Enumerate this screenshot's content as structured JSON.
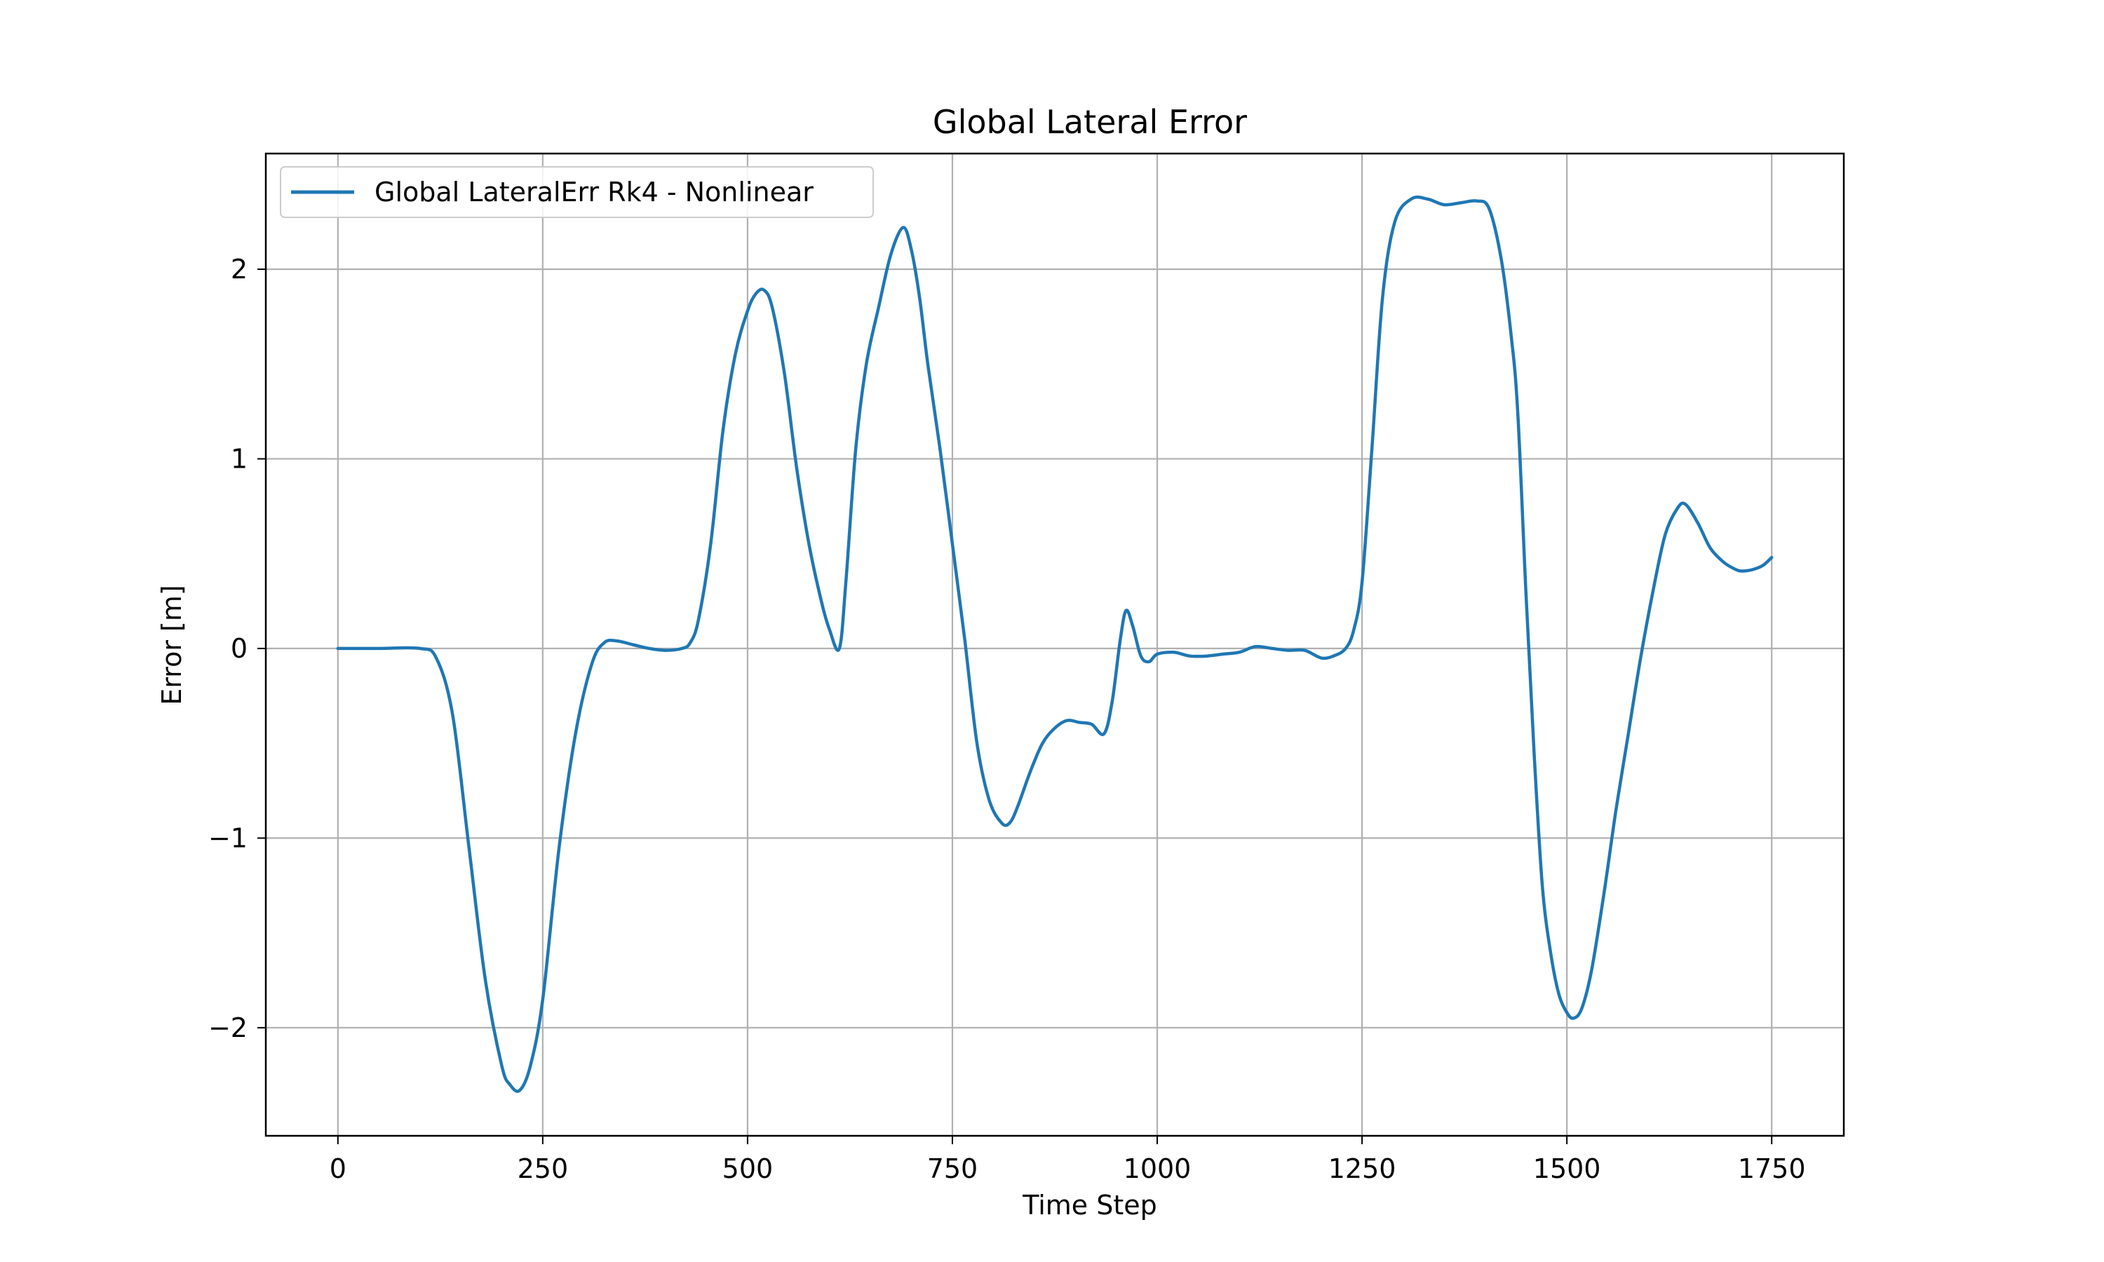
{
  "chart_data": {
    "type": "line",
    "title": "Global Lateral Error",
    "xlabel": "Time Step",
    "ylabel": "Error [m]",
    "xlim": [
      -88,
      1838
    ],
    "ylim": [
      -2.57,
      2.61
    ],
    "xticks": [
      0,
      250,
      500,
      750,
      1000,
      1250,
      1500,
      1750
    ],
    "yticks": [
      -2,
      -1,
      0,
      1,
      2
    ],
    "xtick_labels": [
      "0",
      "250",
      "500",
      "750",
      "1000",
      "1250",
      "1500",
      "1750"
    ],
    "ytick_labels": [
      "−2",
      "−1",
      "0",
      "1",
      "2"
    ],
    "grid": true,
    "legend_position": "upper-left",
    "series": [
      {
        "name": "Global LateralErr Rk4 - Nonlinear",
        "color": "#1f77b4",
        "x": [
          0,
          50,
          100,
          120,
          140,
          160,
          180,
          200,
          210,
          222,
          235,
          250,
          270,
          290,
          310,
          325,
          340,
          360,
          380,
          400,
          420,
          430,
          440,
          455,
          470,
          485,
          500,
          510,
          520,
          530,
          545,
          560,
          575,
          590,
          600,
          612,
          620,
          632,
          645,
          660,
          675,
          690,
          700,
          710,
          720,
          735,
          750,
          765,
          780,
          795,
          810,
          820,
          830,
          845,
          860,
          875,
          890,
          905,
          920,
          935,
          945,
          955,
          962,
          970,
          980,
          990,
          1000,
          1020,
          1040,
          1060,
          1080,
          1100,
          1120,
          1140,
          1160,
          1180,
          1200,
          1215,
          1230,
          1240,
          1250,
          1262,
          1275,
          1290,
          1310,
          1330,
          1350,
          1370,
          1390,
          1405,
          1420,
          1432,
          1440,
          1450,
          1460,
          1470,
          1480,
          1490,
          1500,
          1508,
          1518,
          1530,
          1545,
          1560,
          1575,
          1590,
          1605,
          1620,
          1635,
          1645,
          1660,
          1675,
          1690,
          1700,
          1710,
          1720,
          1730,
          1740,
          1750
        ],
        "y": [
          0,
          0,
          0,
          -0.05,
          -0.35,
          -1.05,
          -1.75,
          -2.2,
          -2.3,
          -2.33,
          -2.2,
          -1.85,
          -1.05,
          -0.45,
          -0.08,
          0.03,
          0.04,
          0.02,
          0.0,
          -0.01,
          0.0,
          0.03,
          0.15,
          0.55,
          1.15,
          1.55,
          1.78,
          1.87,
          1.89,
          1.8,
          1.45,
          0.95,
          0.55,
          0.25,
          0.1,
          0.0,
          0.35,
          1.05,
          1.5,
          1.8,
          2.08,
          2.22,
          2.1,
          1.85,
          1.5,
          1.05,
          0.55,
          0.05,
          -0.5,
          -0.8,
          -0.92,
          -0.92,
          -0.83,
          -0.65,
          -0.5,
          -0.42,
          -0.38,
          -0.39,
          -0.4,
          -0.45,
          -0.28,
          0.05,
          0.2,
          0.12,
          -0.04,
          -0.07,
          -0.03,
          -0.02,
          -0.04,
          -0.04,
          -0.03,
          -0.02,
          0.01,
          0.0,
          -0.01,
          -0.01,
          -0.05,
          -0.04,
          0.0,
          0.1,
          0.35,
          1.05,
          1.85,
          2.25,
          2.37,
          2.37,
          2.34,
          2.35,
          2.36,
          2.32,
          2.05,
          1.65,
          1.25,
          0.3,
          -0.55,
          -1.25,
          -1.6,
          -1.82,
          -1.92,
          -1.95,
          -1.9,
          -1.7,
          -1.3,
          -0.85,
          -0.45,
          -0.05,
          0.3,
          0.6,
          0.74,
          0.76,
          0.66,
          0.53,
          0.46,
          0.43,
          0.41,
          0.41,
          0.42,
          0.44,
          0.48
        ]
      }
    ]
  }
}
